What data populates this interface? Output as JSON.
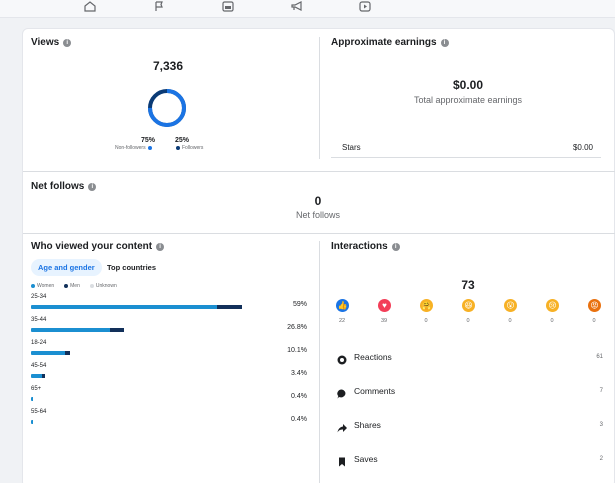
{
  "nav": {
    "icons": [
      "home-icon",
      "flag-icon",
      "page-icon",
      "megaphone-icon",
      "video-icon"
    ]
  },
  "views": {
    "title": "Views",
    "total": "7,336",
    "nonfollowers_pct": "75%",
    "nonfollowers_label": "Non-followers",
    "followers_pct": "25%",
    "followers_label": "Followers",
    "nonfollowers_share": 0.75,
    "ring_color_nonfollowers": "#1b74e4",
    "ring_color_followers": "#0a3a75"
  },
  "earnings": {
    "title": "Approximate earnings",
    "total": "$0.00",
    "total_label": "Total approximate earnings",
    "stars_label": "Stars",
    "stars_value": "$0.00"
  },
  "net_follows": {
    "title": "Net follows",
    "value": "0",
    "label": "Net follows"
  },
  "who_viewed": {
    "title": "Who viewed your content",
    "tabs": [
      "Age and gender",
      "Top countries"
    ],
    "legend": [
      {
        "label": "Women",
        "color": "#1b8fd1"
      },
      {
        "label": "Men",
        "color": "#12305a"
      },
      {
        "label": "Unknown",
        "color": "#dadde1"
      }
    ],
    "rows": [
      {
        "age": "25-34",
        "pct": "59%",
        "women": 0.52,
        "men": 0.07
      },
      {
        "age": "35-44",
        "pct": "26.8%",
        "women": 0.22,
        "men": 0.04
      },
      {
        "age": "18-24",
        "pct": "10.1%",
        "women": 0.095,
        "men": 0.015
      },
      {
        "age": "45-54",
        "pct": "3.4%",
        "women": 0.03,
        "men": 0.008
      },
      {
        "age": "65+",
        "pct": "0.4%",
        "women": 0.006,
        "men": 0.0
      },
      {
        "age": "55-64",
        "pct": "0.4%",
        "women": 0.006,
        "men": 0.0
      }
    ]
  },
  "interactions": {
    "title": "Interactions",
    "total": "73",
    "reactions": [
      {
        "name": "like-icon",
        "count": "22",
        "color": "#1b74e4",
        "glyph": "👍"
      },
      {
        "name": "love-icon",
        "count": "39",
        "color": "#f33e58",
        "glyph": "♥"
      },
      {
        "name": "care-icon",
        "count": "0",
        "color": "#f7b125",
        "glyph": "🤗"
      },
      {
        "name": "haha-icon",
        "count": "0",
        "color": "#f7b125",
        "glyph": "😆"
      },
      {
        "name": "wow-icon",
        "count": "0",
        "color": "#f7b125",
        "glyph": "😮"
      },
      {
        "name": "sad-icon",
        "count": "0",
        "color": "#f7b125",
        "glyph": "😢"
      },
      {
        "name": "angry-icon",
        "count": "0",
        "color": "#e9710f",
        "glyph": "😡"
      }
    ],
    "rows": [
      {
        "label": "Reactions",
        "count": "61",
        "icon": "reactions-icon"
      },
      {
        "label": "Comments",
        "count": "7",
        "icon": "comments-icon"
      },
      {
        "label": "Shares",
        "count": "3",
        "icon": "shares-icon"
      },
      {
        "label": "Saves",
        "count": "2",
        "icon": "saves-icon"
      }
    ]
  }
}
